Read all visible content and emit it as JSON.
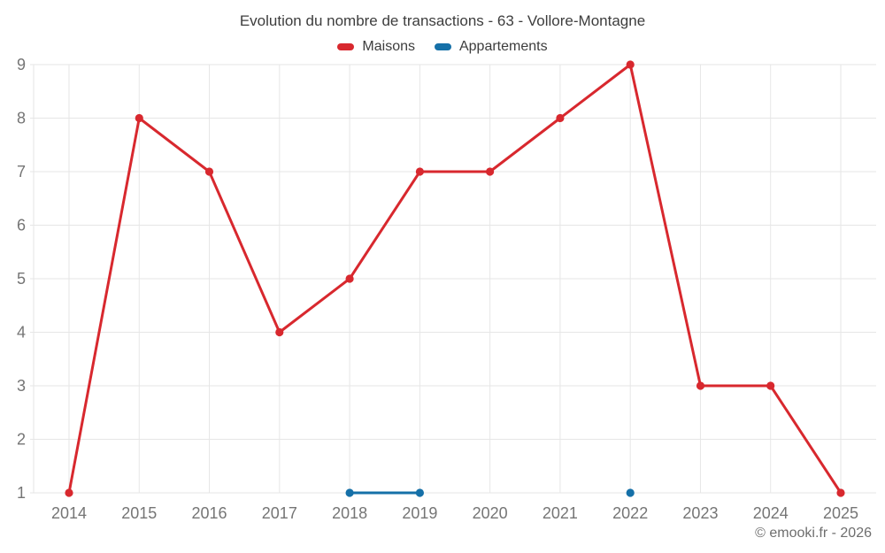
{
  "title": "Evolution du nombre de transactions - 63 - Vollore-Montagne",
  "legend": {
    "items": [
      {
        "label": "Maisons",
        "color": "#d8282e"
      },
      {
        "label": "Appartements",
        "color": "#1570a8"
      }
    ]
  },
  "footer": {
    "text": "© emooki.fr - 2026"
  },
  "colors": {
    "background": "#ffffff",
    "grid": "#e6e6e6",
    "tick_label": "#757575",
    "title_text": "#3d3d3d",
    "footer_text": "#6e6e6e",
    "maisons": "#d8282e",
    "appartements": "#1570a8"
  },
  "chart_data": {
    "type": "line",
    "title": "Evolution du nombre de transactions - 63 - Vollore-Montagne",
    "x": [
      "2014",
      "2015",
      "2016",
      "2017",
      "2018",
      "2019",
      "2020",
      "2021",
      "2022",
      "2023",
      "2024",
      "2025"
    ],
    "series": [
      {
        "name": "Maisons",
        "color": "#d8282e",
        "values": [
          1,
          8,
          7,
          4,
          5,
          7,
          7,
          8,
          9,
          3,
          3,
          1
        ]
      },
      {
        "name": "Appartements",
        "color": "#1570a8",
        "values": [
          null,
          null,
          null,
          null,
          1,
          1,
          null,
          null,
          1,
          null,
          null,
          null
        ]
      }
    ],
    "xlabel": "",
    "ylabel": "",
    "ylim": [
      1,
      9
    ],
    "yticks": [
      1,
      2,
      3,
      4,
      5,
      6,
      7,
      8,
      9
    ],
    "grid": true,
    "legend_position": "top",
    "marker": "circle"
  }
}
